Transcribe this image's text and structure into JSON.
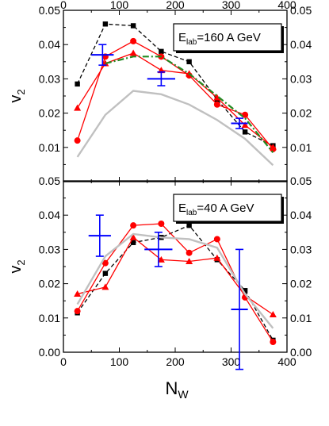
{
  "chart_data": [
    {
      "type": "line",
      "panel": "top",
      "label_box": {
        "main": "E",
        "sub": "lab",
        "rest": "=160 A GeV"
      },
      "xlabel": "N_W",
      "ylabel": "v_2",
      "xlim": [
        0,
        400
      ],
      "ylim": [
        0,
        0.05
      ],
      "x_ticks": [
        0,
        100,
        200,
        300,
        400
      ],
      "y_ticks": [
        "0.01",
        "0.02",
        "0.03",
        "0.04",
        "0.05"
      ],
      "series": [
        {
          "style": "black-dashed-squares",
          "color": "#000000",
          "x": [
            25,
            75,
            125,
            175,
            225,
            275,
            325,
            375
          ],
          "y": [
            0.0285,
            0.046,
            0.0455,
            0.038,
            0.035,
            0.024,
            0.0145,
            0.0105
          ]
        },
        {
          "style": "red-line-circles",
          "color": "#ff0000",
          "x": [
            25,
            75,
            125,
            175,
            225,
            275,
            325,
            375
          ],
          "y": [
            0.012,
            0.0365,
            0.041,
            0.0365,
            0.031,
            0.0225,
            0.0195,
            0.0095
          ]
        },
        {
          "style": "red-line-triangles",
          "color": "#ff0000",
          "x": [
            25,
            75,
            125,
            175,
            225,
            275,
            325,
            375
          ],
          "y": [
            0.0215,
            0.0345,
            0.0375,
            0.0325,
            0.0315,
            0.0245,
            0.0165,
            0.01
          ]
        },
        {
          "style": "green-dash-dot",
          "color": "#228b22",
          "x": [
            75,
            125,
            175,
            225,
            275,
            325,
            375
          ],
          "y": [
            0.0345,
            0.0365,
            0.0365,
            0.0315,
            0.025,
            0.0185,
            0.0085
          ]
        },
        {
          "style": "gray-line",
          "color": "#c0c0c0",
          "x": [
            25,
            75,
            125,
            175,
            225,
            275,
            325,
            375
          ],
          "y": [
            0.0072,
            0.0195,
            0.0265,
            0.0255,
            0.0225,
            0.018,
            0.0125,
            0.0048
          ]
        },
        {
          "style": "blue-errorbars",
          "color": "#0000ff",
          "x": [
            70,
            175,
            315
          ],
          "y": [
            0.037,
            0.03,
            0.017
          ],
          "xerr": [
            20,
            25,
            15
          ],
          "yerr": [
            0.003,
            0.002,
            0.0015
          ]
        }
      ]
    },
    {
      "type": "line",
      "panel": "bottom",
      "label_box": {
        "main": "E",
        "sub": "lab",
        "rest": "=40 A GeV"
      },
      "xlabel": "N_W",
      "ylabel": "v_2",
      "xlim": [
        0,
        400
      ],
      "ylim": [
        0,
        0.05
      ],
      "x_ticks": [
        "0",
        "100",
        "200",
        "300",
        "400"
      ],
      "y_ticks": [
        "0.00",
        "0.01",
        "0.02",
        "0.03",
        "0.04",
        "0.05"
      ],
      "series": [
        {
          "style": "black-dashed-squares",
          "color": "#000000",
          "x": [
            25,
            75,
            125,
            175,
            225,
            275,
            325,
            375
          ],
          "y": [
            0.0115,
            0.023,
            0.032,
            0.0335,
            0.037,
            0.027,
            0.018,
            0.0035
          ]
        },
        {
          "style": "red-line-circles",
          "color": "#ff0000",
          "x": [
            25,
            75,
            125,
            175,
            225,
            275,
            325,
            375
          ],
          "y": [
            0.012,
            0.026,
            0.037,
            0.0375,
            0.029,
            0.033,
            0.016,
            0.003
          ]
        },
        {
          "style": "red-line-triangles",
          "color": "#ff0000",
          "x": [
            25,
            75,
            125,
            175,
            225,
            275,
            325,
            375
          ],
          "y": [
            0.017,
            0.019,
            0.0335,
            0.027,
            0.0265,
            0.0275,
            0.0165,
            0.011
          ]
        },
        {
          "style": "gray-line",
          "color": "#c0c0c0",
          "x": [
            25,
            75,
            125,
            175,
            225,
            275,
            325,
            375
          ],
          "y": [
            0.014,
            0.028,
            0.0345,
            0.0335,
            0.033,
            0.0305,
            0.017,
            0.007
          ]
        },
        {
          "style": "blue-errorbars",
          "color": "#0000ff",
          "x": [
            65,
            170,
            315
          ],
          "y": [
            0.034,
            0.03,
            0.0125
          ],
          "xerr": [
            20,
            25,
            15
          ],
          "yerr": [
            0.006,
            0.005,
            0.0175
          ]
        }
      ]
    }
  ]
}
